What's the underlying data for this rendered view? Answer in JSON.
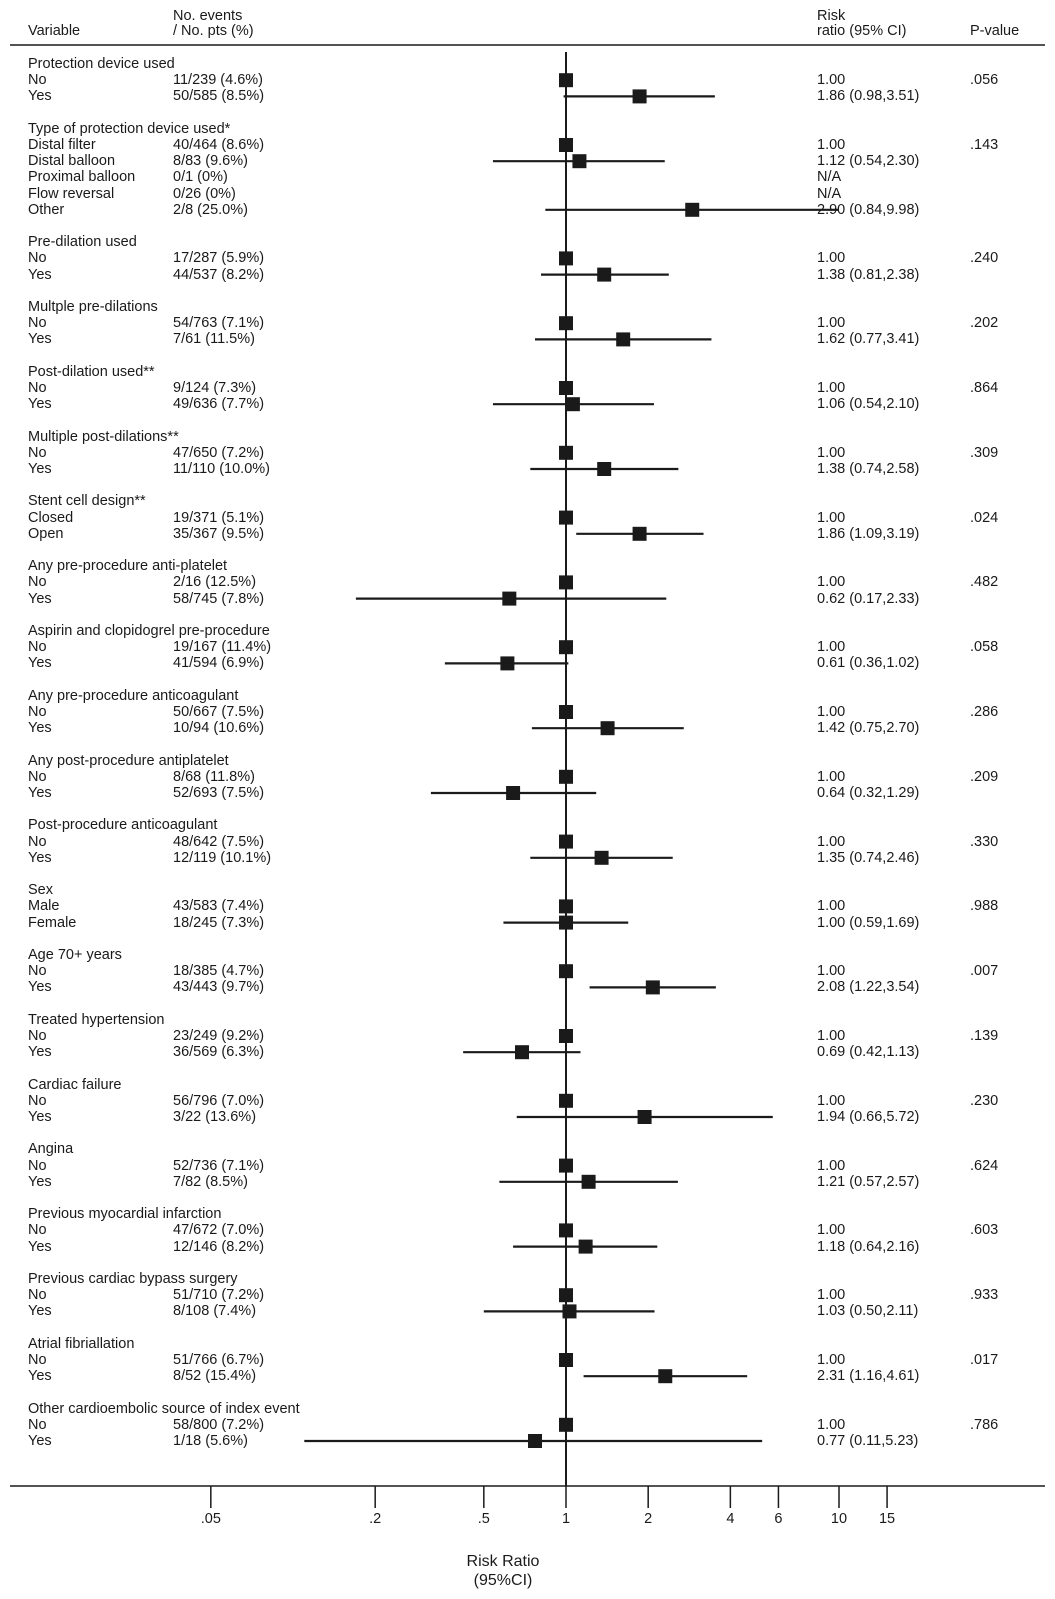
{
  "headers": {
    "variable": "Variable",
    "events_line1": "No. events",
    "events_line2": "/ No. pts (%)",
    "rr_line1": "Risk",
    "rr_line2": "ratio (95% CI)",
    "pvalue": "P-value"
  },
  "chart_data": {
    "type": "forest",
    "xaxis": {
      "scale": "log",
      "label_line1": "Risk Ratio",
      "label_line2": "(95%CI)",
      "ticks": [
        0.05,
        0.2,
        0.5,
        1,
        2,
        4,
        6,
        10,
        15
      ],
      "tick_labels": [
        ".05",
        ".2",
        ".5",
        "1",
        "2",
        "4",
        "6",
        "10",
        "15"
      ],
      "reference": 1
    },
    "groups": [
      {
        "title": "Protection device used",
        "p": ".056",
        "rows": [
          {
            "label": "No",
            "events": "11/239 (4.6%)",
            "rr_text": "1.00",
            "rr": 1
          },
          {
            "label": "Yes",
            "events": "50/585 (8.5%)",
            "rr_text": "1.86 (0.98,3.51)",
            "rr": 1.86,
            "lo": 0.98,
            "hi": 3.51
          }
        ]
      },
      {
        "title": "Type of protection device used*",
        "p": ".143",
        "rows": [
          {
            "label": "Distal filter",
            "events": "40/464 (8.6%)",
            "rr_text": "1.00",
            "rr": 1
          },
          {
            "label": "Distal balloon",
            "events": "8/83 (9.6%)",
            "rr_text": "1.12 (0.54,2.30)",
            "rr": 1.12,
            "lo": 0.54,
            "hi": 2.3
          },
          {
            "label": "Proximal balloon",
            "events": "0/1 (0%)",
            "rr_text": "N/A"
          },
          {
            "label": "Flow reversal",
            "events": "0/26 (0%)",
            "rr_text": "N/A"
          },
          {
            "label": "Other",
            "events": "2/8 (25.0%)",
            "rr_text": "2.90 (0.84,9.98)",
            "rr": 2.9,
            "lo": 0.84,
            "hi": 9.98
          }
        ]
      },
      {
        "title": "Pre-dilation used",
        "p": ".240",
        "rows": [
          {
            "label": "No",
            "events": "17/287 (5.9%)",
            "rr_text": "1.00",
            "rr": 1
          },
          {
            "label": "Yes",
            "events": "44/537 (8.2%)",
            "rr_text": "1.38 (0.81,2.38)",
            "rr": 1.38,
            "lo": 0.81,
            "hi": 2.38
          }
        ]
      },
      {
        "title": "Multple pre-dilations",
        "p": ".202",
        "rows": [
          {
            "label": "No",
            "events": "54/763 (7.1%)",
            "rr_text": "1.00",
            "rr": 1
          },
          {
            "label": "Yes",
            "events": "7/61 (11.5%)",
            "rr_text": "1.62 (0.77,3.41)",
            "rr": 1.62,
            "lo": 0.77,
            "hi": 3.41
          }
        ]
      },
      {
        "title": "Post-dilation used**",
        "p": ".864",
        "rows": [
          {
            "label": "No",
            "events": "9/124 (7.3%)",
            "rr_text": "1.00",
            "rr": 1
          },
          {
            "label": "Yes",
            "events": "49/636 (7.7%)",
            "rr_text": "1.06 (0.54,2.10)",
            "rr": 1.06,
            "lo": 0.54,
            "hi": 2.1
          }
        ]
      },
      {
        "title": "Multiple post-dilations**",
        "p": ".309",
        "rows": [
          {
            "label": "No",
            "events": "47/650 (7.2%)",
            "rr_text": "1.00",
            "rr": 1
          },
          {
            "label": "Yes",
            "events": "11/110 (10.0%)",
            "rr_text": "1.38 (0.74,2.58)",
            "rr": 1.38,
            "lo": 0.74,
            "hi": 2.58
          }
        ]
      },
      {
        "title": "Stent cell design**",
        "p": ".024",
        "rows": [
          {
            "label": "Closed",
            "events": "19/371 (5.1%)",
            "rr_text": "1.00",
            "rr": 1
          },
          {
            "label": "Open",
            "events": "35/367 (9.5%)",
            "rr_text": "1.86 (1.09,3.19)",
            "rr": 1.86,
            "lo": 1.09,
            "hi": 3.19
          }
        ]
      },
      {
        "title": "Any pre-procedure anti-platelet",
        "p": ".482",
        "rows": [
          {
            "label": "No",
            "events": "2/16 (12.5%)",
            "rr_text": "1.00",
            "rr": 1
          },
          {
            "label": "Yes",
            "events": "58/745 (7.8%)",
            "rr_text": "0.62 (0.17,2.33)",
            "rr": 0.62,
            "lo": 0.17,
            "hi": 2.33
          }
        ]
      },
      {
        "title": "Aspirin and clopidogrel pre-procedure",
        "p": ".058",
        "rows": [
          {
            "label": "No",
            "events": "19/167 (11.4%)",
            "rr_text": "1.00",
            "rr": 1
          },
          {
            "label": "Yes",
            "events": "41/594 (6.9%)",
            "rr_text": "0.61 (0.36,1.02)",
            "rr": 0.61,
            "lo": 0.36,
            "hi": 1.02
          }
        ]
      },
      {
        "title": "Any pre-procedure anticoagulant",
        "p": ".286",
        "rows": [
          {
            "label": "No",
            "events": "50/667 (7.5%)",
            "rr_text": "1.00",
            "rr": 1
          },
          {
            "label": "Yes",
            "events": "10/94 (10.6%)",
            "rr_text": "1.42 (0.75,2.70)",
            "rr": 1.42,
            "lo": 0.75,
            "hi": 2.7
          }
        ]
      },
      {
        "title": "Any post-procedure antiplatelet",
        "p": ".209",
        "rows": [
          {
            "label": "No",
            "events": "8/68 (11.8%)",
            "rr_text": "1.00",
            "rr": 1
          },
          {
            "label": "Yes",
            "events": "52/693 (7.5%)",
            "rr_text": "0.64 (0.32,1.29)",
            "rr": 0.64,
            "lo": 0.32,
            "hi": 1.29
          }
        ]
      },
      {
        "title": "Post-procedure anticoagulant",
        "p": ".330",
        "rows": [
          {
            "label": "No",
            "events": "48/642 (7.5%)",
            "rr_text": "1.00",
            "rr": 1
          },
          {
            "label": "Yes",
            "events": "12/119 (10.1%)",
            "rr_text": "1.35 (0.74,2.46)",
            "rr": 1.35,
            "lo": 0.74,
            "hi": 2.46
          }
        ]
      },
      {
        "title": "Sex",
        "p": ".988",
        "rows": [
          {
            "label": "Male",
            "events": "43/583 (7.4%)",
            "rr_text": "1.00",
            "rr": 1
          },
          {
            "label": "Female",
            "events": "18/245 (7.3%)",
            "rr_text": "1.00 (0.59,1.69)",
            "rr": 1.0,
            "lo": 0.59,
            "hi": 1.69
          }
        ]
      },
      {
        "title": "Age 70+ years",
        "p": ".007",
        "rows": [
          {
            "label": "No",
            "events": "18/385 (4.7%)",
            "rr_text": "1.00",
            "rr": 1
          },
          {
            "label": "Yes",
            "events": "43/443 (9.7%)",
            "rr_text": "2.08 (1.22,3.54)",
            "rr": 2.08,
            "lo": 1.22,
            "hi": 3.54
          }
        ]
      },
      {
        "title": "Treated hypertension",
        "p": ".139",
        "rows": [
          {
            "label": "No",
            "events": "23/249 (9.2%)",
            "rr_text": "1.00",
            "rr": 1
          },
          {
            "label": "Yes",
            "events": "36/569 (6.3%)",
            "rr_text": "0.69 (0.42,1.13)",
            "rr": 0.69,
            "lo": 0.42,
            "hi": 1.13
          }
        ]
      },
      {
        "title": "Cardiac failure",
        "p": ".230",
        "rows": [
          {
            "label": "No",
            "events": "56/796 (7.0%)",
            "rr_text": "1.00",
            "rr": 1
          },
          {
            "label": "Yes",
            "events": "3/22 (13.6%)",
            "rr_text": "1.94 (0.66,5.72)",
            "rr": 1.94,
            "lo": 0.66,
            "hi": 5.72
          }
        ]
      },
      {
        "title": "Angina",
        "p": ".624",
        "rows": [
          {
            "label": "No",
            "events": "52/736 (7.1%)",
            "rr_text": "1.00",
            "rr": 1
          },
          {
            "label": "Yes",
            "events": "7/82 (8.5%)",
            "rr_text": "1.21 (0.57,2.57)",
            "rr": 1.21,
            "lo": 0.57,
            "hi": 2.57
          }
        ]
      },
      {
        "title": "Previous myocardial infarction",
        "p": ".603",
        "rows": [
          {
            "label": "No",
            "events": "47/672 (7.0%)",
            "rr_text": "1.00",
            "rr": 1
          },
          {
            "label": "Yes",
            "events": "12/146 (8.2%)",
            "rr_text": "1.18 (0.64,2.16)",
            "rr": 1.18,
            "lo": 0.64,
            "hi": 2.16
          }
        ]
      },
      {
        "title": "Previous cardiac bypass surgery",
        "p": ".933",
        "rows": [
          {
            "label": "No",
            "events": "51/710 (7.2%)",
            "rr_text": "1.00",
            "rr": 1
          },
          {
            "label": "Yes",
            "events": "8/108 (7.4%)",
            "rr_text": "1.03 (0.50,2.11)",
            "rr": 1.03,
            "lo": 0.5,
            "hi": 2.11
          }
        ]
      },
      {
        "title": "Atrial fibriallation",
        "p": ".017",
        "rows": [
          {
            "label": "No",
            "events": "51/766 (6.7%)",
            "rr_text": "1.00",
            "rr": 1
          },
          {
            "label": "Yes",
            "events": "8/52 (15.4%)",
            "rr_text": "2.31 (1.16,4.61)",
            "rr": 2.31,
            "lo": 1.16,
            "hi": 4.61
          }
        ]
      },
      {
        "title": "Other cardioembolic source of index event",
        "p": ".786",
        "rows": [
          {
            "label": "No",
            "events": "58/800 (7.2%)",
            "rr_text": "1.00",
            "rr": 1
          },
          {
            "label": "Yes",
            "events": "1/18 (5.6%)",
            "rr_text": "0.77 (0.11,5.23)",
            "rr": 0.77,
            "lo": 0.11,
            "hi": 5.23
          }
        ]
      }
    ]
  }
}
